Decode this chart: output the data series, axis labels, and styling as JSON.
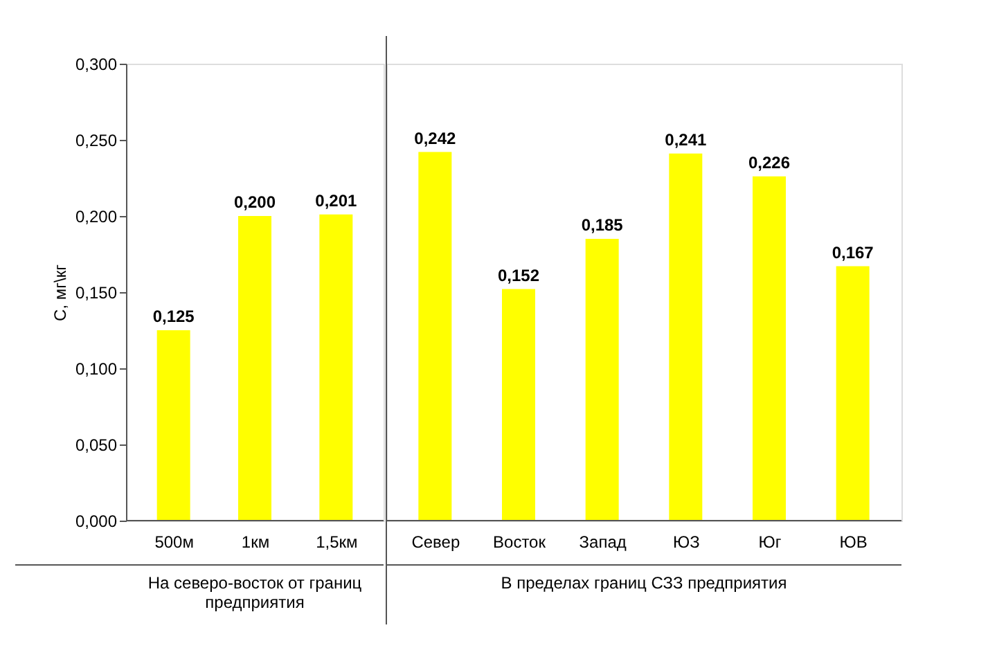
{
  "chart_data": [
    {
      "type": "bar",
      "ylabel": "C, мг\\кг",
      "categories": [
        "500м",
        "1км",
        "1,5км"
      ],
      "values": [
        0.125,
        0.2,
        0.201
      ],
      "value_labels": [
        "0,125",
        "0,200",
        "0,201"
      ],
      "color": "#ffff00",
      "ylim": [
        0,
        0.3
      ],
      "yticks": [
        {
          "value": 0,
          "label": "0,000"
        },
        {
          "value": 0.05,
          "label": "0,050"
        },
        {
          "value": 0.1,
          "label": "0,100"
        },
        {
          "value": 0.15,
          "label": "0,150"
        },
        {
          "value": 0.2,
          "label": "0,200"
        },
        {
          "value": 0.25,
          "label": "0,250"
        },
        {
          "value": 0.3,
          "label": "0,300"
        }
      ],
      "grid": false,
      "annotations": [
        "На северо-восток от границ предприятия"
      ]
    },
    {
      "type": "bar",
      "categories": [
        "Север",
        "Восток",
        "Запад",
        "ЮЗ",
        "Юг",
        "ЮВ"
      ],
      "values": [
        0.242,
        0.152,
        0.185,
        0.241,
        0.226,
        0.167
      ],
      "value_labels": [
        "0,242",
        "0,152",
        "0,185",
        "0,241",
        "0,226",
        "0,167"
      ],
      "color": "#ffff00",
      "ylim": [
        0,
        0.3
      ],
      "tick_labels": "x",
      "grid": false,
      "annotations": [
        "В пределах границ СЗЗ предприятия"
      ]
    }
  ]
}
